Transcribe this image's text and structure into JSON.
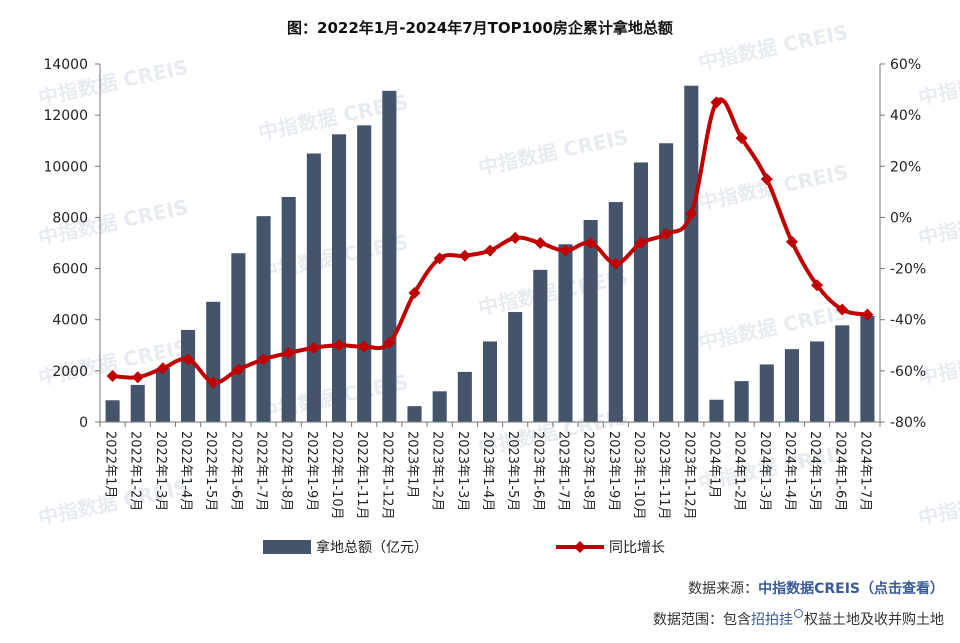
{
  "chart_data": {
    "type": "bar+line",
    "title": "图：2022年1月-2024年7月TOP100房企累计拿地总额",
    "categories": [
      "2022年1月",
      "2022年1-2月",
      "2022年1-3月",
      "2022年1-4月",
      "2022年1-5月",
      "2022年1-6月",
      "2022年1-7月",
      "2022年1-8月",
      "2022年1-9月",
      "2022年1-10月",
      "2022年1-11月",
      "2022年1-12月",
      "2023年1月",
      "2023年1-2月",
      "2023年1-3月",
      "2023年1-4月",
      "2023年1-5月",
      "2023年1-6月",
      "2023年1-7月",
      "2023年1-8月",
      "2023年1-9月",
      "2023年1-10月",
      "2023年1-11月",
      "2023年1-12月",
      "2024年1月",
      "2024年1-2月",
      "2024年1-3月",
      "2024年1-4月",
      "2024年1-5月",
      "2024年1-6月",
      "2024年1-7月"
    ],
    "series": [
      {
        "name": "拿地总额（亿元）",
        "type": "bar",
        "axis": "left",
        "color": "#44546a",
        "values": [
          850,
          1450,
          2100,
          3600,
          4700,
          6600,
          8050,
          8800,
          10500,
          11250,
          11600,
          12950,
          620,
          1200,
          1960,
          3150,
          4300,
          5950,
          6950,
          7900,
          8600,
          10150,
          10900,
          13150,
          870,
          1600,
          2250,
          2850,
          3150,
          3780,
          4150
        ]
      },
      {
        "name": "同比增长",
        "type": "line",
        "axis": "right",
        "color": "#c00000",
        "values": [
          -62,
          -62.5,
          -59,
          -55.5,
          -64.5,
          -59.5,
          -55.5,
          -53,
          -51,
          -50,
          -50.5,
          -49,
          -29.5,
          -16,
          -15,
          -13,
          -8,
          -10,
          -13,
          -10,
          -18,
          -10,
          -6.5,
          1.5,
          45,
          31,
          15,
          -9.5,
          -26.5,
          -36,
          -38
        ]
      }
    ],
    "y_left": {
      "min": 0,
      "max": 14000,
      "ticks": [
        "0",
        "2000",
        "4000",
        "6000",
        "8000",
        "10000",
        "12000",
        "14000"
      ]
    },
    "y_right": {
      "min": -80,
      "max": 60,
      "ticks": [
        "-80%",
        "-60%",
        "-40%",
        "-20%",
        "0%",
        "20%",
        "40%",
        "60%"
      ]
    },
    "grid": false,
    "legend_position": "bottom"
  },
  "legend": {
    "bar_label": "拿地总额（亿元）",
    "line_label": "同比增长"
  },
  "watermark": "中指数据 CREIS",
  "footer": {
    "source_prefix": "数据来源：",
    "source_link": "中指数据CREIS（点击查看）",
    "scope_prefix": "数据范围：包含",
    "scope_link": "招拍挂",
    "scope_suffix": "权益土地及收并购土地"
  },
  "colors": {
    "bar": "#44546a",
    "line": "#c00000"
  }
}
